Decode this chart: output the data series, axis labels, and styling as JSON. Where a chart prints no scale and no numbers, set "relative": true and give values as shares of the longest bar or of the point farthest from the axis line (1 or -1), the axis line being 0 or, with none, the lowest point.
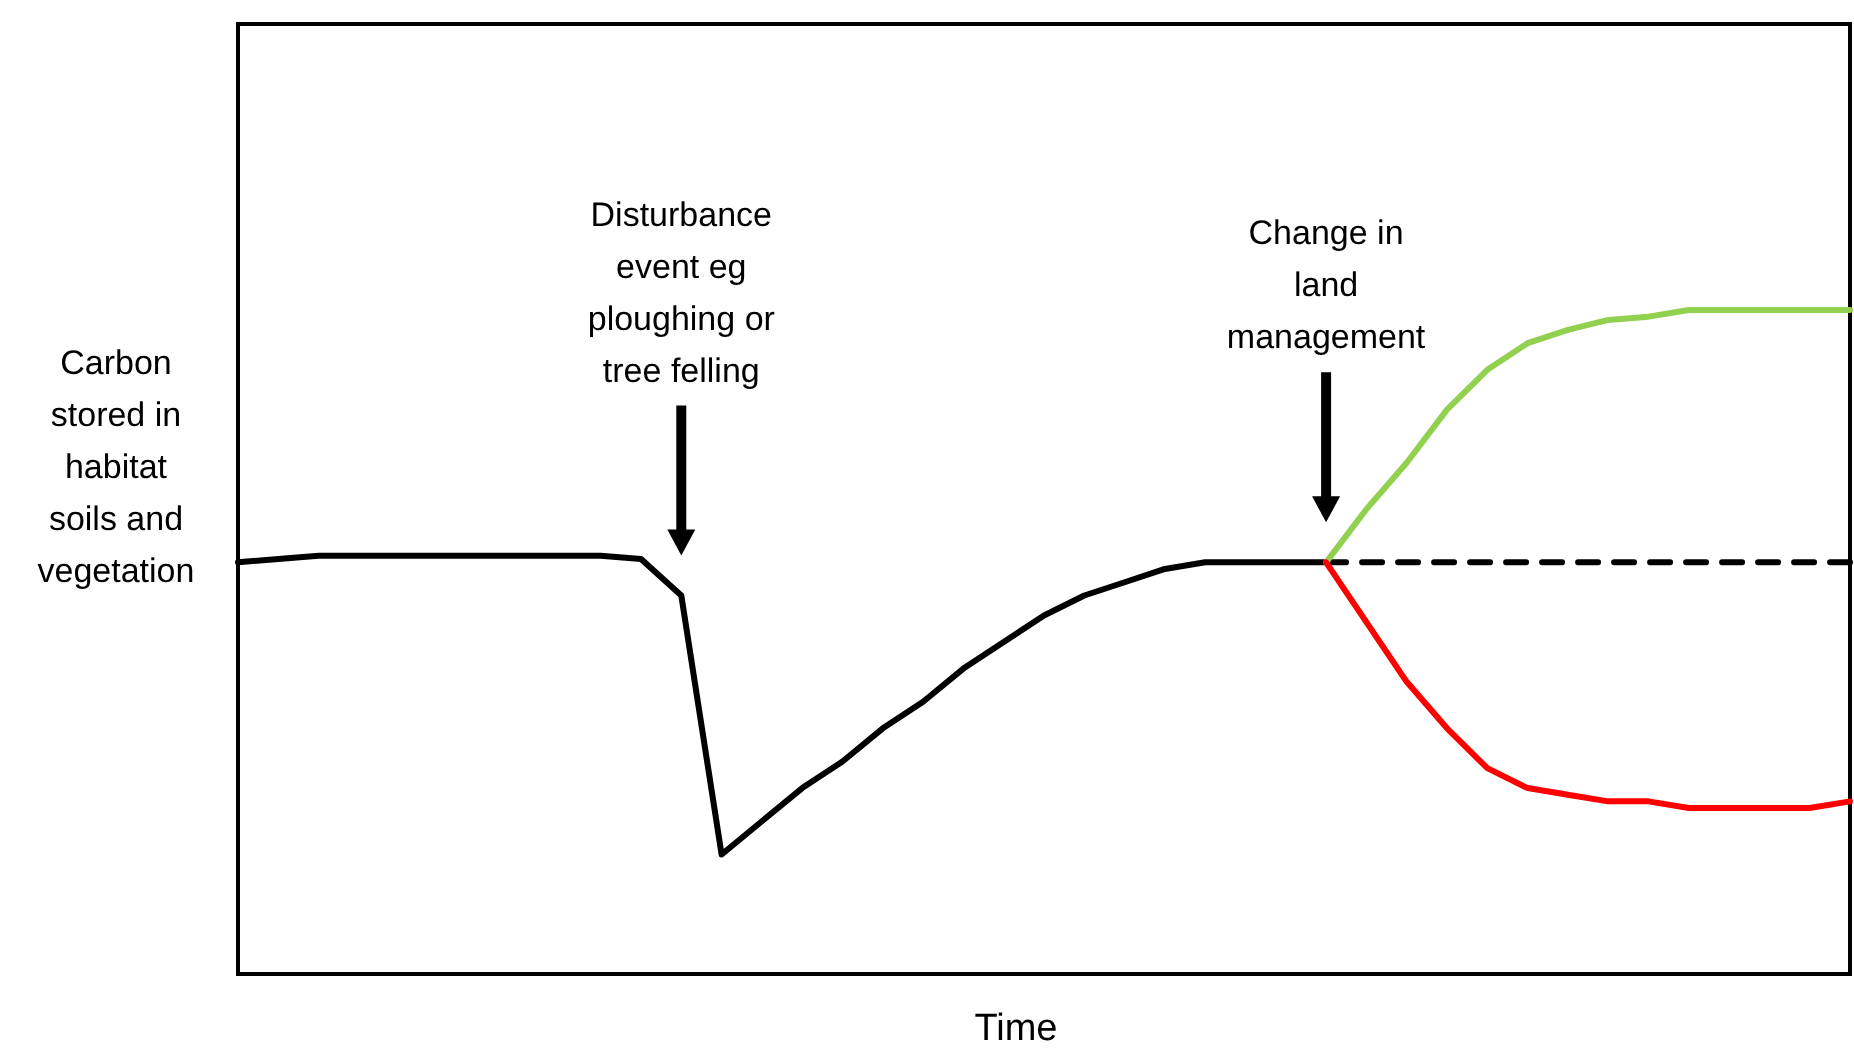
{
  "chart_data": {
    "type": "line",
    "relative": true,
    "xlabel": "Time",
    "ylabel": "Carbon stored in habitat soils and vegetation",
    "annotations": [
      "Disturbance event eg ploughing or tree felling",
      "Change in land management"
    ],
    "categories": [
      null,
      null,
      null,
      null,
      null,
      null,
      null,
      null,
      null,
      null,
      null,
      null,
      null,
      null,
      null,
      null,
      null,
      null,
      null,
      null,
      null,
      null,
      null,
      null,
      null,
      null,
      null,
      null,
      null,
      null,
      null,
      null,
      null,
      null,
      null,
      null,
      null,
      null,
      null,
      null,
      null
    ],
    "marker": "none",
    "series": [
      {
        "color": "#000000",
        "line_style": "solid",
        "values": [
          0.62,
          0.625,
          0.63,
          0.63,
          0.63,
          0.63,
          0.63,
          0.63,
          0.63,
          0.63,
          0.625,
          0.57,
          0.18,
          0.23,
          0.28,
          0.32,
          0.37,
          0.41,
          0.46,
          0.5,
          0.54,
          0.57,
          0.59,
          0.61,
          0.62,
          0.62,
          0.62,
          0.62,
          null,
          null,
          null,
          null,
          null,
          null,
          null,
          null,
          null,
          null,
          null,
          null,
          null
        ]
      },
      {
        "color": "#000000",
        "line_style": "dashed",
        "values": [
          null,
          null,
          null,
          null,
          null,
          null,
          null,
          null,
          null,
          null,
          null,
          null,
          null,
          null,
          null,
          null,
          null,
          null,
          null,
          null,
          null,
          null,
          null,
          null,
          null,
          null,
          null,
          0.62,
          0.62,
          0.62,
          0.62,
          0.62,
          0.62,
          0.62,
          0.62,
          0.62,
          0.62,
          0.62,
          0.62,
          0.62,
          0.62
        ]
      },
      {
        "color": "#92d050",
        "line_style": "solid",
        "values": [
          null,
          null,
          null,
          null,
          null,
          null,
          null,
          null,
          null,
          null,
          null,
          null,
          null,
          null,
          null,
          null,
          null,
          null,
          null,
          null,
          null,
          null,
          null,
          null,
          null,
          null,
          null,
          0.62,
          0.7,
          0.77,
          0.85,
          0.91,
          0.95,
          0.97,
          0.985,
          0.99,
          1,
          1,
          1,
          1,
          1
        ]
      },
      {
        "color": "#ff0000",
        "line_style": "solid",
        "values": [
          null,
          null,
          null,
          null,
          null,
          null,
          null,
          null,
          null,
          null,
          null,
          null,
          null,
          null,
          null,
          null,
          null,
          null,
          null,
          null,
          null,
          null,
          null,
          null,
          null,
          null,
          null,
          0.62,
          0.53,
          0.44,
          0.37,
          0.31,
          0.28,
          0.27,
          0.26,
          0.26,
          0.25,
          0.25,
          0.25,
          0.25,
          0.26
        ]
      }
    ]
  }
}
